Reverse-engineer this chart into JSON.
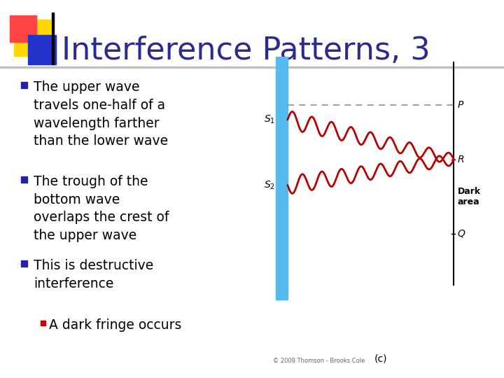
{
  "title": "Interference Patterns, 3",
  "title_color": "#2B2B8F",
  "title_fontsize": 32,
  "bg_color": "#FFFFFF",
  "bullet_color": "#2222AA",
  "sub_bullet_color": "#CC0000",
  "bullet_fontsize": 13.5,
  "bullets": [
    "The upper wave\ntravels one-half of a\nwavelength farther\nthan the lower wave",
    "The trough of the\nbottom wave\noverlaps the crest of\nthe upper wave",
    "This is destructive\ninterference"
  ],
  "sub_bullet": "A dark fringe occurs",
  "header_yellow": "#FFD700",
  "header_red": "#FF4444",
  "header_blue": "#2233CC",
  "header_line_color": "#AAAAAA",
  "diagram_wave_color": "#BB0000",
  "diagram_slit_color": "#55BBEE",
  "diagram_dashed_color": "#999999",
  "copyright_text": "© 2008 Thomson - Brooks Cole",
  "panel_label": "(c)"
}
